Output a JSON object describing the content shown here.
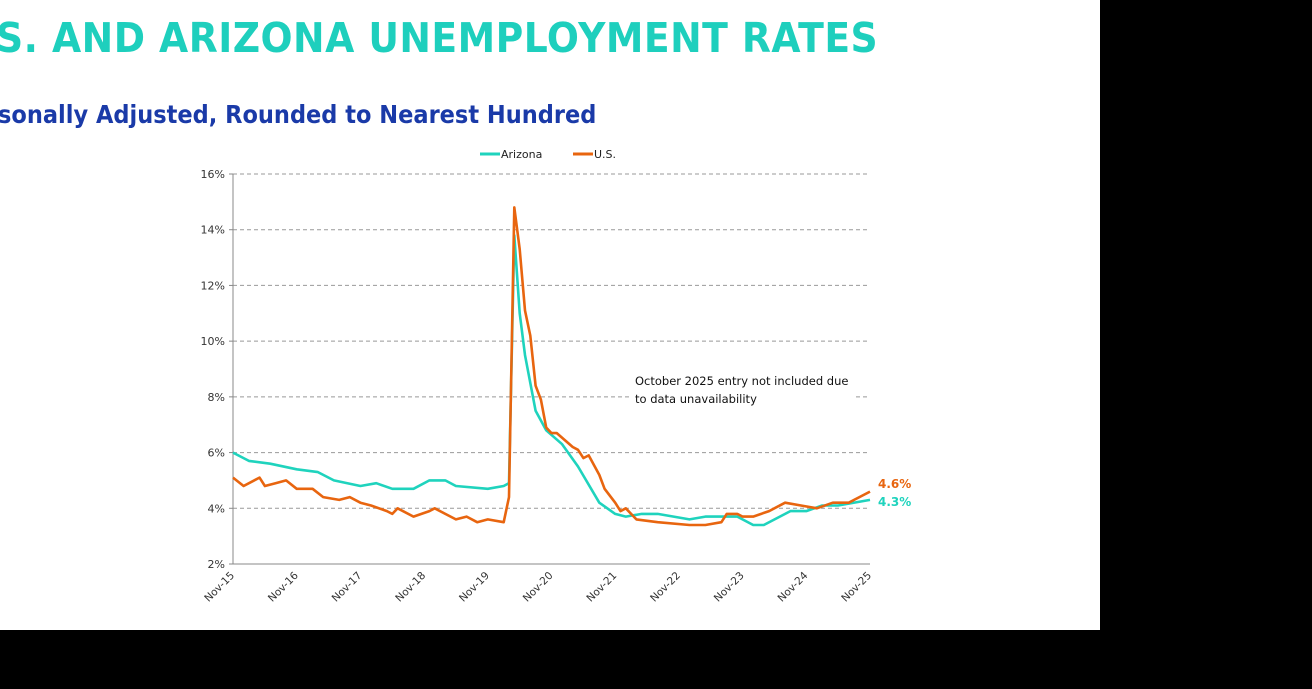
{
  "title": "S. AND ARIZONA UNEMPLOYMENT RATES",
  "subtitle": "sonally Adjusted, Rounded to Nearest Hundred",
  "chart_data": {
    "type": "line",
    "ylim": [
      2,
      16
    ],
    "yticks": [
      "2%",
      "4%",
      "6%",
      "8%",
      "10%",
      "12%",
      "14%",
      "16%"
    ],
    "ytick_values": [
      2,
      4,
      6,
      8,
      10,
      12,
      14,
      16
    ],
    "xticks": [
      "Nov-15",
      "Nov-16",
      "Nov-17",
      "Nov-18",
      "Nov-19",
      "Nov-20",
      "Nov-21",
      "Nov-22",
      "Nov-23",
      "Nov-24",
      "Nov-25"
    ],
    "grid": "horizontal dashed",
    "legend": "top",
    "annotation": "October 2025 entry not included due to data unavailability",
    "annotation_lines": [
      "October 2025 entry not included due",
      "to data unavailability"
    ],
    "series": [
      {
        "name": "Arizona",
        "color": "#1fd3bd",
        "end_label": "4.3%",
        "points": [
          [
            "2015-11",
            6.0
          ],
          [
            "2016-02",
            5.7
          ],
          [
            "2016-06",
            5.6
          ],
          [
            "2016-11",
            5.4
          ],
          [
            "2017-03",
            5.3
          ],
          [
            "2017-06",
            5.0
          ],
          [
            "2017-11",
            4.8
          ],
          [
            "2018-02",
            4.9
          ],
          [
            "2018-05",
            4.7
          ],
          [
            "2018-09",
            4.7
          ],
          [
            "2018-12",
            5.0
          ],
          [
            "2019-03",
            5.0
          ],
          [
            "2019-05",
            4.8
          ],
          [
            "2019-11",
            4.7
          ],
          [
            "2020-02",
            4.8
          ],
          [
            "2020-03",
            4.9
          ],
          [
            "2020-04",
            13.8
          ],
          [
            "2020-05",
            11.0
          ],
          [
            "2020-06",
            9.5
          ],
          [
            "2020-08",
            7.5
          ],
          [
            "2020-10",
            6.8
          ],
          [
            "2021-01",
            6.3
          ],
          [
            "2021-04",
            5.5
          ],
          [
            "2021-08",
            4.2
          ],
          [
            "2021-11",
            3.8
          ],
          [
            "2022-01",
            3.7
          ],
          [
            "2022-04",
            3.8
          ],
          [
            "2022-07",
            3.8
          ],
          [
            "2022-10",
            3.7
          ],
          [
            "2023-01",
            3.6
          ],
          [
            "2023-04",
            3.7
          ],
          [
            "2023-10",
            3.7
          ],
          [
            "2024-01",
            3.4
          ],
          [
            "2024-03",
            3.4
          ],
          [
            "2024-08",
            3.9
          ],
          [
            "2024-11",
            3.9
          ],
          [
            "2025-02",
            4.1
          ],
          [
            "2025-05",
            4.1
          ],
          [
            "2025-11",
            4.3
          ]
        ]
      },
      {
        "name": "U.S.",
        "color": "#e8650f",
        "end_label": "4.6%",
        "points": [
          [
            "2015-11",
            5.1
          ],
          [
            "2016-01",
            4.8
          ],
          [
            "2016-04",
            5.1
          ],
          [
            "2016-05",
            4.8
          ],
          [
            "2016-07",
            4.9
          ],
          [
            "2016-09",
            5.0
          ],
          [
            "2016-11",
            4.7
          ],
          [
            "2017-02",
            4.7
          ],
          [
            "2017-04",
            4.4
          ],
          [
            "2017-07",
            4.3
          ],
          [
            "2017-09",
            4.4
          ],
          [
            "2017-11",
            4.2
          ],
          [
            "2018-01",
            4.1
          ],
          [
            "2018-04",
            3.9
          ],
          [
            "2018-05",
            3.8
          ],
          [
            "2018-06",
            4.0
          ],
          [
            "2018-09",
            3.7
          ],
          [
            "2018-12",
            3.9
          ],
          [
            "2019-01",
            4.0
          ],
          [
            "2019-03",
            3.8
          ],
          [
            "2019-05",
            3.6
          ],
          [
            "2019-07",
            3.7
          ],
          [
            "2019-09",
            3.5
          ],
          [
            "2019-11",
            3.6
          ],
          [
            "2020-02",
            3.5
          ],
          [
            "2020-03",
            4.4
          ],
          [
            "2020-04",
            14.8
          ],
          [
            "2020-05",
            13.3
          ],
          [
            "2020-06",
            11.1
          ],
          [
            "2020-07",
            10.2
          ],
          [
            "2020-08",
            8.4
          ],
          [
            "2020-09",
            7.9
          ],
          [
            "2020-10",
            6.9
          ],
          [
            "2020-11",
            6.7
          ],
          [
            "2020-12",
            6.7
          ],
          [
            "2021-03",
            6.2
          ],
          [
            "2021-04",
            6.1
          ],
          [
            "2021-05",
            5.8
          ],
          [
            "2021-06",
            5.9
          ],
          [
            "2021-08",
            5.2
          ],
          [
            "2021-09",
            4.7
          ],
          [
            "2021-11",
            4.2
          ],
          [
            "2021-12",
            3.9
          ],
          [
            "2022-01",
            4.0
          ],
          [
            "2022-03",
            3.6
          ],
          [
            "2022-07",
            3.5
          ],
          [
            "2023-01",
            3.4
          ],
          [
            "2023-04",
            3.4
          ],
          [
            "2023-07",
            3.5
          ],
          [
            "2023-08",
            3.8
          ],
          [
            "2023-10",
            3.8
          ],
          [
            "2023-11",
            3.7
          ],
          [
            "2024-01",
            3.7
          ],
          [
            "2024-04",
            3.9
          ],
          [
            "2024-07",
            4.2
          ],
          [
            "2024-10",
            4.1
          ],
          [
            "2025-01",
            4.0
          ],
          [
            "2025-04",
            4.2
          ],
          [
            "2025-07",
            4.2
          ],
          [
            "2025-08",
            4.3
          ],
          [
            "2025-09",
            4.4
          ],
          [
            "2025-11",
            4.6
          ]
        ]
      }
    ]
  }
}
